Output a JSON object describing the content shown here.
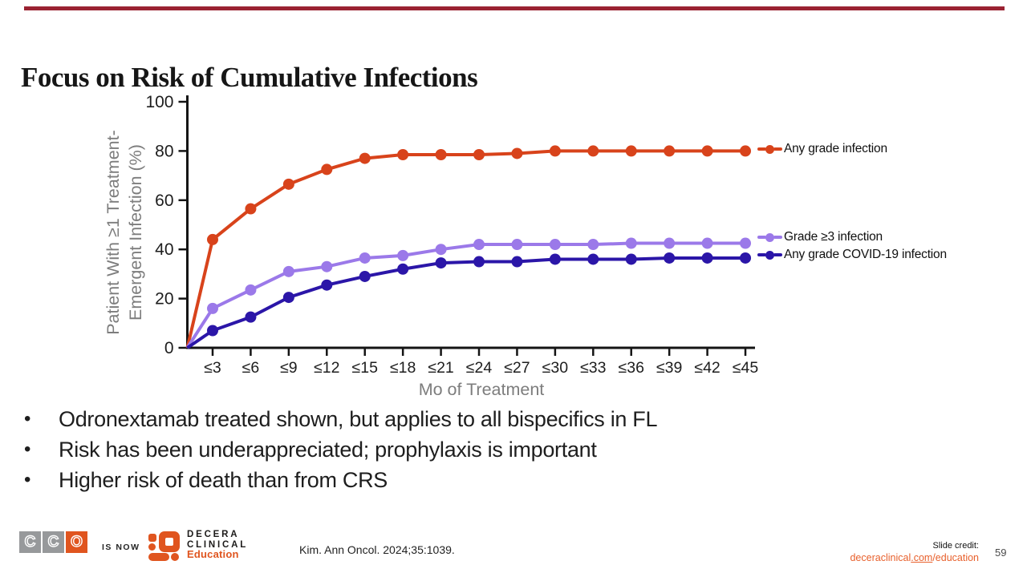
{
  "slide": {
    "title": "Focus on Risk of Cumulative Infections"
  },
  "colors": {
    "top_bar": "#9a2232",
    "brand_orange": "#e0551f",
    "logo_gray": "#97999b"
  },
  "chart_data": {
    "type": "line",
    "xlabel": "Mo of Treatment",
    "ylabel_line1": "Patient With ≥1 Treatment-",
    "ylabel_line2": "Emergent Infection (%)",
    "ylim": [
      0,
      100
    ],
    "yticks": [
      0,
      20,
      40,
      60,
      80,
      100
    ],
    "categories": [
      "≤3",
      "≤6",
      "≤9",
      "≤12",
      "≤15",
      "≤18",
      "≤21",
      "≤24",
      "≤27",
      "≤30",
      "≤33",
      "≤36",
      "≤39",
      "≤42",
      "≤45"
    ],
    "lines_start_at_origin": true,
    "grid": false,
    "legend_position": "right",
    "series": [
      {
        "name": "Any grade infection",
        "color": "#d8431b",
        "values": [
          44,
          56.5,
          66.5,
          72.5,
          77,
          78.5,
          78.5,
          78.5,
          79,
          80,
          80,
          80,
          80,
          80,
          80
        ]
      },
      {
        "name": "Grade ≥3 infection",
        "color": "#9b79e9",
        "values": [
          16,
          23.5,
          31,
          33,
          36.5,
          37.5,
          40,
          42,
          42,
          42,
          42,
          42.5,
          42.5,
          42.5,
          42.5
        ]
      },
      {
        "name": "Any grade COVID-19 infection",
        "color": "#2b16a8",
        "values": [
          7,
          12.5,
          20.5,
          25.5,
          29,
          32,
          34.5,
          35,
          35,
          36,
          36,
          36,
          36.5,
          36.5,
          36.5
        ]
      }
    ]
  },
  "bullets": [
    "Odronextamab treated shown, but applies to all bispecifics in FL",
    "Risk has been underappreciated; prophylaxis is important",
    "Higher risk of death than from CRS"
  ],
  "footer": {
    "cco_letters": [
      "C",
      "C",
      "O"
    ],
    "is_now": "IS NOW",
    "decera_line1": "DECERA",
    "decera_line2": "CLINICAL",
    "decera_line3": "Education",
    "citation": "Kim. Ann Oncol. 2024;35:1039.",
    "slide_credit_label": "Slide credit:",
    "credit_link_part1": "deceraclinical",
    "credit_link_part2": ".com",
    "credit_link_part3": "/education",
    "page_number": "59"
  }
}
